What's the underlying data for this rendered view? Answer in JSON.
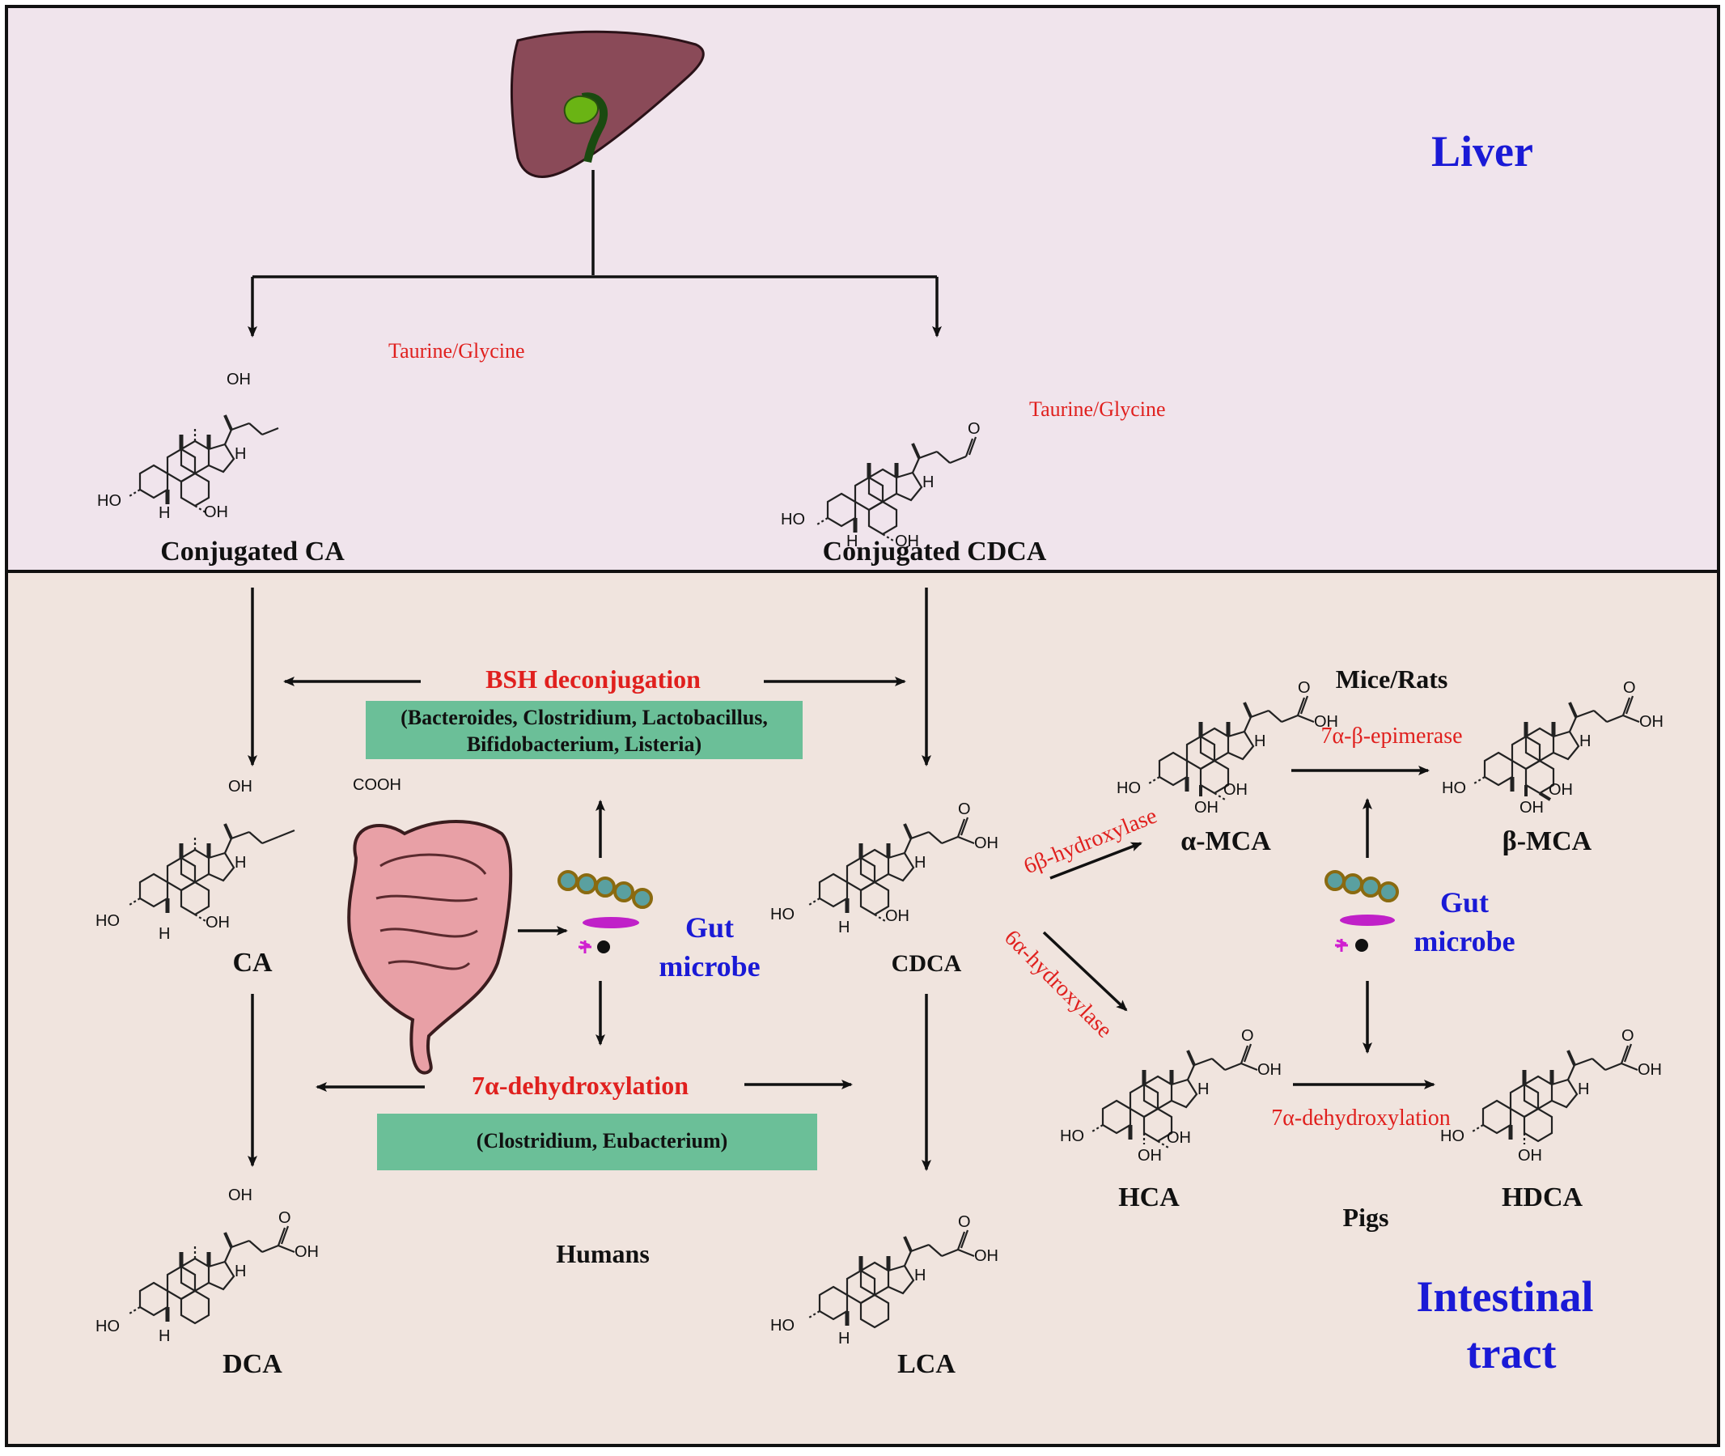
{
  "regions": {
    "liver": "Liver",
    "intestine_line1": "Intestinal",
    "intestine_line2": "tract"
  },
  "compounds": {
    "conj_ca": "Conjugated  CA",
    "conj_cdca": "Conjugated CDCA",
    "ca": "CA",
    "cdca": "CDCA",
    "dca": "DCA",
    "lca": "LCA",
    "alpha_mca": "α-MCA",
    "beta_mca": "β-MCA",
    "hca": "HCA",
    "hdca": "HDCA"
  },
  "conjugate_label": "Taurine/Glycine",
  "processes": {
    "bsh_title": "BSH deconjugation",
    "bsh_bacteria_line1": "(Bacteroides, Clostridium, Lactobacillus,",
    "bsh_bacteria_line2": "Bifidobacterium, Listeria)",
    "dehydrox_title": "7α-dehydroxylation",
    "dehydrox_bacteria": "(Clostridium, Eubacterium)",
    "hydroxylase_6b": "6β-hydroxylase",
    "hydroxylase_6a": "6α-hydroxylase",
    "epimerase": "7α-β-epimerase",
    "dehydrox_pigs": "7α-dehydroxylation"
  },
  "gut_microbe": {
    "line1": "Gut",
    "line2": "microbe"
  },
  "species": {
    "humans": "Humans",
    "mice_rats": "Mice/Rats",
    "pigs": "Pigs"
  },
  "atoms": {
    "oh_left": "HO",
    "oh": "OH",
    "h": "H",
    "o": "O",
    "cooh": "COOH"
  },
  "colors": {
    "liver_bg": "#f0e4ec",
    "intestine_bg": "#f0e4de",
    "label_red": "#e0201e",
    "label_blue": "#1a1ad6",
    "box_green": "#6bbf98"
  }
}
